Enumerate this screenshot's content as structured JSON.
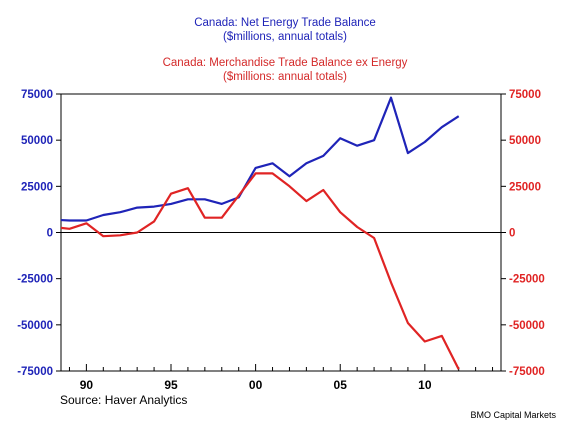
{
  "titles": {
    "line1": "Canada: Net Energy Trade Balance",
    "line2": "($millions, annual totals)",
    "line3": "Canada: Merchandise Trade Balance ex Energy",
    "line4": "($millions: annual totals)"
  },
  "source": "Source: Haver Analytics",
  "brand": "BMO Capital Markets",
  "colors": {
    "series1": "#1f24b8",
    "series2": "#e02424",
    "axis": "#000000"
  },
  "chart_data": {
    "type": "line",
    "grid": false,
    "xlim": [
      1988.5,
      2014.5
    ],
    "ylim": [
      -75000,
      75000
    ],
    "y_ticks": [
      75000,
      50000,
      25000,
      0,
      -25000,
      -50000,
      -75000
    ],
    "y_tick_labels": [
      "75000",
      "50000",
      "25000",
      "0",
      "-25000",
      "-50000",
      "-75000"
    ],
    "x_ticks": [
      1990,
      1995,
      2000,
      2005,
      2010
    ],
    "x_tick_labels": [
      "90",
      "95",
      "00",
      "05",
      "10"
    ],
    "series": [
      {
        "name": "Canada: Net Energy Trade Balance",
        "axis": "left",
        "x": [
          1988,
          1989,
          1990,
          1991,
          1992,
          1993,
          1994,
          1995,
          1996,
          1997,
          1998,
          1999,
          2000,
          2001,
          2002,
          2003,
          2004,
          2005,
          2006,
          2007,
          2008,
          2009,
          2010,
          2011,
          2012
        ],
        "y": [
          7000,
          6500,
          6500,
          9500,
          11000,
          13500,
          14000,
          15500,
          18000,
          18000,
          15500,
          19000,
          35000,
          37500,
          30500,
          37500,
          41500,
          51000,
          47000,
          50000,
          73000,
          43000,
          49000,
          57000,
          63000
        ]
      },
      {
        "name": "Canada: Merchandise Trade Balance ex Energy",
        "axis": "right",
        "x": [
          1988,
          1989,
          1990,
          1991,
          1992,
          1993,
          1994,
          1995,
          1996,
          1997,
          1998,
          1999,
          2000,
          2001,
          2002,
          2003,
          2004,
          2005,
          2006,
          2007,
          2008,
          2009,
          2010,
          2011,
          2012
        ],
        "y": [
          3000,
          2000,
          5000,
          -2000,
          -1500,
          0,
          6000,
          21000,
          24000,
          8000,
          8000,
          20000,
          32000,
          32000,
          25000,
          17000,
          23000,
          11000,
          3000,
          -3000,
          -27000,
          -49000,
          -59000,
          -56000,
          -74000
        ]
      }
    ]
  }
}
